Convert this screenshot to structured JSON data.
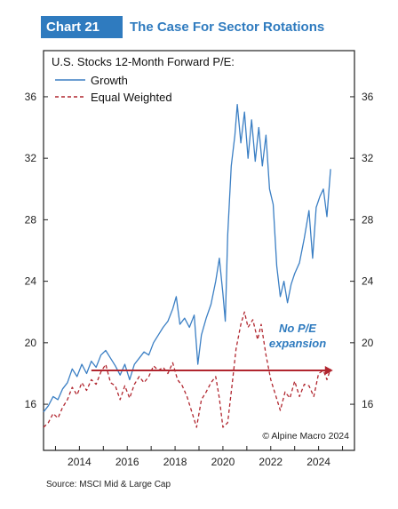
{
  "header": {
    "chart_number": "Chart 21",
    "title": "The Case For Sector Rotations"
  },
  "footer": {
    "source": "Source: MSCI Mid & Large Cap"
  },
  "colors": {
    "header_box": "#2f7bbf",
    "title_text": "#2f7bbf",
    "growth": "#3b7fc4",
    "equal_weighted": "#b1262f",
    "arrow": "#b1262f",
    "annotation": "#2f7bbf"
  },
  "chart_data": {
    "type": "line",
    "title": "U.S. Stocks 12-Month Forward P/E:",
    "xlabel": "",
    "ylabel": "",
    "xlim": [
      2012.5,
      2025.5
    ],
    "ylim": [
      13,
      39
    ],
    "x_ticks": [
      "2014",
      "2016",
      "2018",
      "2020",
      "2022",
      "2024"
    ],
    "y_ticks": [
      "16",
      "20",
      "24",
      "28",
      "32",
      "36"
    ],
    "y_axis_both_sides": true,
    "grid": false,
    "legend_position": "top-left",
    "copyright": "© Alpine Macro 2024",
    "annotation": {
      "text_line1": "No P/E",
      "text_line2": "expansion"
    },
    "arrow": {
      "x_start": 2014.5,
      "x_end": 2024.6,
      "y": 18.2
    },
    "series": [
      {
        "name": "Growth",
        "style": "solid",
        "points": [
          [
            2012.5,
            15.5
          ],
          [
            2012.7,
            15.9
          ],
          [
            2012.9,
            16.5
          ],
          [
            2013.1,
            16.3
          ],
          [
            2013.3,
            17.0
          ],
          [
            2013.5,
            17.4
          ],
          [
            2013.7,
            18.3
          ],
          [
            2013.9,
            17.8
          ],
          [
            2014.1,
            18.6
          ],
          [
            2014.3,
            18.0
          ],
          [
            2014.5,
            18.8
          ],
          [
            2014.7,
            18.4
          ],
          [
            2014.9,
            19.2
          ],
          [
            2015.1,
            19.5
          ],
          [
            2015.3,
            19.0
          ],
          [
            2015.5,
            18.5
          ],
          [
            2015.7,
            17.9
          ],
          [
            2015.9,
            18.6
          ],
          [
            2016.1,
            17.6
          ],
          [
            2016.3,
            18.6
          ],
          [
            2016.5,
            19.0
          ],
          [
            2016.7,
            19.4
          ],
          [
            2016.9,
            19.2
          ],
          [
            2017.1,
            20.0
          ],
          [
            2017.3,
            20.5
          ],
          [
            2017.5,
            21.0
          ],
          [
            2017.7,
            21.4
          ],
          [
            2017.9,
            22.2
          ],
          [
            2018.05,
            23.0
          ],
          [
            2018.2,
            21.2
          ],
          [
            2018.4,
            21.6
          ],
          [
            2018.6,
            21.0
          ],
          [
            2018.8,
            21.8
          ],
          [
            2018.95,
            18.6
          ],
          [
            2019.1,
            20.5
          ],
          [
            2019.3,
            21.6
          ],
          [
            2019.5,
            22.5
          ],
          [
            2019.7,
            24.0
          ],
          [
            2019.85,
            25.5
          ],
          [
            2020.0,
            23.2
          ],
          [
            2020.1,
            21.4
          ],
          [
            2020.2,
            27.0
          ],
          [
            2020.35,
            31.5
          ],
          [
            2020.5,
            33.5
          ],
          [
            2020.6,
            35.5
          ],
          [
            2020.75,
            33.0
          ],
          [
            2020.9,
            35.0
          ],
          [
            2021.05,
            32.0
          ],
          [
            2021.2,
            34.5
          ],
          [
            2021.35,
            31.8
          ],
          [
            2021.5,
            34.0
          ],
          [
            2021.65,
            31.5
          ],
          [
            2021.8,
            33.5
          ],
          [
            2021.95,
            30.0
          ],
          [
            2022.1,
            29.0
          ],
          [
            2022.25,
            25.0
          ],
          [
            2022.4,
            23.0
          ],
          [
            2022.55,
            24.0
          ],
          [
            2022.7,
            22.6
          ],
          [
            2022.85,
            23.8
          ],
          [
            2023.0,
            24.5
          ],
          [
            2023.2,
            25.2
          ],
          [
            2023.4,
            26.8
          ],
          [
            2023.6,
            28.6
          ],
          [
            2023.75,
            25.5
          ],
          [
            2023.9,
            28.8
          ],
          [
            2024.05,
            29.5
          ],
          [
            2024.2,
            30.0
          ],
          [
            2024.35,
            28.2
          ],
          [
            2024.5,
            31.3
          ]
        ]
      },
      {
        "name": "Equal Weighted",
        "style": "dashed",
        "points": [
          [
            2012.5,
            14.5
          ],
          [
            2012.7,
            14.8
          ],
          [
            2012.9,
            15.4
          ],
          [
            2013.1,
            15.1
          ],
          [
            2013.3,
            15.8
          ],
          [
            2013.5,
            16.3
          ],
          [
            2013.7,
            17.1
          ],
          [
            2013.9,
            16.6
          ],
          [
            2014.1,
            17.4
          ],
          [
            2014.3,
            16.9
          ],
          [
            2014.5,
            17.6
          ],
          [
            2014.7,
            17.3
          ],
          [
            2014.9,
            18.1
          ],
          [
            2015.1,
            18.6
          ],
          [
            2015.3,
            17.4
          ],
          [
            2015.5,
            17.2
          ],
          [
            2015.7,
            16.3
          ],
          [
            2015.9,
            17.2
          ],
          [
            2016.1,
            16.4
          ],
          [
            2016.3,
            17.3
          ],
          [
            2016.5,
            17.8
          ],
          [
            2016.7,
            17.4
          ],
          [
            2016.9,
            17.8
          ],
          [
            2017.1,
            18.5
          ],
          [
            2017.3,
            18.2
          ],
          [
            2017.5,
            18.4
          ],
          [
            2017.7,
            18.0
          ],
          [
            2017.9,
            18.7
          ],
          [
            2018.1,
            17.6
          ],
          [
            2018.3,
            17.2
          ],
          [
            2018.5,
            16.5
          ],
          [
            2018.7,
            15.5
          ],
          [
            2018.9,
            14.5
          ],
          [
            2019.1,
            16.3
          ],
          [
            2019.3,
            16.8
          ],
          [
            2019.5,
            17.4
          ],
          [
            2019.7,
            17.8
          ],
          [
            2019.85,
            16.4
          ],
          [
            2020.0,
            14.5
          ],
          [
            2020.2,
            14.8
          ],
          [
            2020.4,
            17.5
          ],
          [
            2020.55,
            19.6
          ],
          [
            2020.75,
            21.2
          ],
          [
            2020.9,
            22.0
          ],
          [
            2021.05,
            21.0
          ],
          [
            2021.25,
            21.5
          ],
          [
            2021.45,
            20.2
          ],
          [
            2021.6,
            21.2
          ],
          [
            2021.8,
            19.2
          ],
          [
            2022.0,
            17.6
          ],
          [
            2022.2,
            16.6
          ],
          [
            2022.4,
            15.6
          ],
          [
            2022.6,
            16.8
          ],
          [
            2022.8,
            16.4
          ],
          [
            2023.0,
            17.5
          ],
          [
            2023.2,
            16.5
          ],
          [
            2023.4,
            17.3
          ],
          [
            2023.6,
            17.2
          ],
          [
            2023.8,
            16.5
          ],
          [
            2024.0,
            18.0
          ],
          [
            2024.2,
            18.2
          ],
          [
            2024.35,
            17.6
          ],
          [
            2024.5,
            18.3
          ]
        ]
      }
    ]
  }
}
